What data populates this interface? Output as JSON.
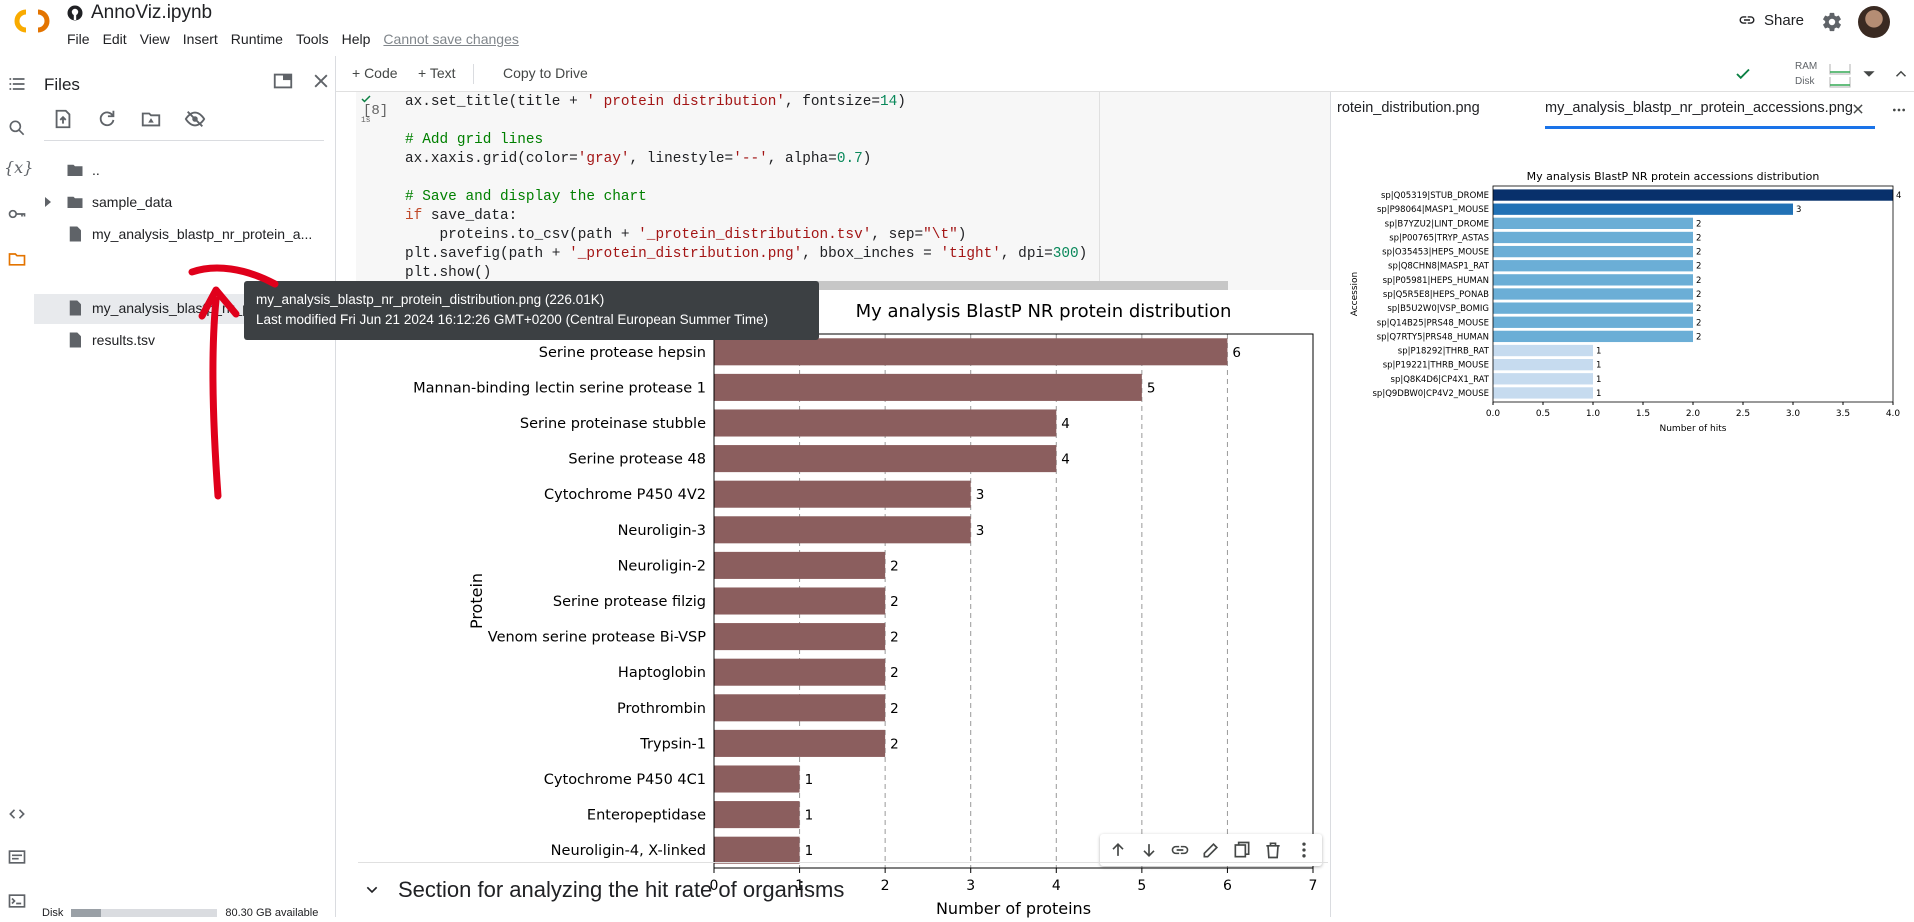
{
  "app": {
    "title": "AnnoViz.ipynb",
    "menu": [
      "File",
      "Edit",
      "View",
      "Insert",
      "Runtime",
      "Tools",
      "Help"
    ],
    "cannot_save": "Cannot save changes",
    "share_label": "Share"
  },
  "cellbar": {
    "code_label": "+ Code",
    "text_label": "+ Text",
    "copy_label": "Copy to Drive",
    "ram_label": "RAM",
    "disk_label": "Disk"
  },
  "files": {
    "title": "Files",
    "items": [
      {
        "name": "..",
        "type": "folder"
      },
      {
        "name": "sample_data",
        "type": "folder"
      },
      {
        "name": "my_analysis_blastp_nr_protein_a...",
        "type": "file"
      },
      {
        "name": "my_analysis_blastp_nr_protein_d...",
        "type": "file"
      },
      {
        "name": "results.tsv",
        "type": "file"
      }
    ],
    "disk_label": "Disk",
    "disk_available": "80.30 GB available",
    "disk_used_fraction": 0.2
  },
  "tooltip": {
    "line1": "my_analysis_blastp_nr_protein_distribution.png (226.01K)",
    "line2": "Last modified Fri Jun 21 2024 16:12:26 GMT+0200 (Central European Summer Time)"
  },
  "code_cell": {
    "exec_count": "[8]",
    "exec_time": "1s"
  },
  "section_title": "Section for analyzing the hit rate of organisms",
  "chart_data": [
    {
      "type": "bar",
      "orientation": "horizontal",
      "title": "My analysis BlastP NR protein distribution",
      "xlabel": "Number of proteins",
      "ylabel": "Protein",
      "xlim": [
        0,
        7
      ],
      "xticks": [
        0,
        1,
        2,
        3,
        4,
        5,
        6,
        7
      ],
      "grid": "x dashed",
      "color": "#8b5e5e",
      "categories": [
        "Serine protease hepsin",
        "Mannan-binding lectin serine protease 1",
        "Serine proteinase stubble",
        "Serine protease 48",
        "Cytochrome P450 4V2",
        "Neuroligin-3",
        "Neuroligin-2",
        "Serine protease filzig",
        "Venom serine protease Bi-VSP",
        "Haptoglobin",
        "Prothrombin",
        "Trypsin-1",
        "Cytochrome P450 4C1",
        "Enteropeptidase",
        "Neuroligin-4, X-linked"
      ],
      "values": [
        6,
        5,
        4,
        4,
        3,
        3,
        2,
        2,
        2,
        2,
        2,
        2,
        1,
        1,
        1
      ]
    },
    {
      "type": "bar",
      "orientation": "horizontal",
      "title": "My analysis BlastP NR protein accessions distribution",
      "xlabel": "Number of hits",
      "ylabel": "Accession",
      "xlim": [
        0,
        4
      ],
      "xticks": [
        "0.0",
        "0.5",
        "1.0",
        "1.5",
        "2.0",
        "2.5",
        "3.0",
        "3.5",
        "4.0"
      ],
      "categories": [
        "sp|Q05319|STUB_DROME",
        "sp|P98064|MASP1_MOUSE",
        "sp|B7YZU2|LINT_DROME",
        "sp|P00765|TRYP_ASTAS",
        "sp|O35453|HEPS_MOUSE",
        "sp|Q8CHN8|MASP1_RAT",
        "sp|P05981|HEPS_HUMAN",
        "sp|Q5R5E8|HEPS_PONAB",
        "sp|B5U2W0|VSP_BOMIG",
        "sp|Q14B25|PRS48_MOUSE",
        "sp|Q7RTY5|PRS48_HUMAN",
        "sp|P18292|THRB_RAT",
        "sp|P19221|THRB_MOUSE",
        "sp|Q8K4D6|CP4X1_RAT",
        "sp|Q9DBW0|CP4V2_MOUSE"
      ],
      "values": [
        4,
        3,
        2,
        2,
        2,
        2,
        2,
        2,
        2,
        2,
        2,
        1,
        1,
        1,
        1
      ],
      "colors": {
        "4": "#08306b",
        "3": "#2171b5",
        "2": "#6baed6",
        "1": "#c6dbef"
      }
    }
  ],
  "right_panel": {
    "tabs": [
      "rotein_distribution.png",
      "my_analysis_blastp_nr_protein_accessions.png"
    ]
  }
}
